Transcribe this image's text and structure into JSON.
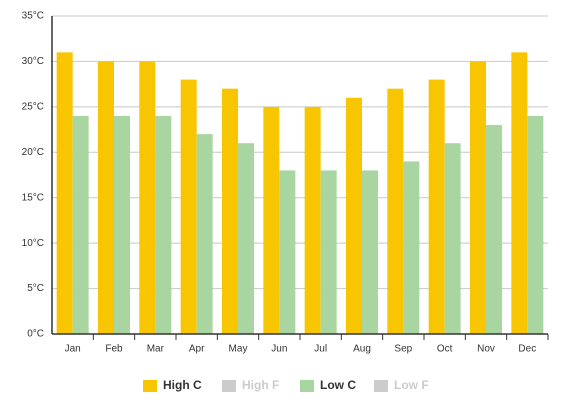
{
  "chart_data": {
    "type": "bar",
    "categories": [
      "Jan",
      "Feb",
      "Mar",
      "Apr",
      "May",
      "Jun",
      "Jul",
      "Aug",
      "Sep",
      "Oct",
      "Nov",
      "Dec"
    ],
    "series": [
      {
        "name": "High C",
        "color": "#f7c600",
        "values": [
          31,
          30,
          30,
          28,
          27,
          25,
          25,
          26,
          27,
          28,
          30,
          31
        ]
      },
      {
        "name": "High F",
        "color": "#cccccc",
        "visible": false
      },
      {
        "name": "Low C",
        "color": "#a9d6a0",
        "values": [
          24,
          24,
          24,
          22,
          21,
          18,
          18,
          18,
          19,
          21,
          23,
          24
        ]
      },
      {
        "name": "Low F",
        "color": "#cccccc",
        "visible": false
      }
    ],
    "ylim": [
      0,
      35
    ],
    "yticks": [
      {
        "value": 0,
        "label": "0°C"
      },
      {
        "value": 5,
        "label": "5°C"
      },
      {
        "value": 10,
        "label": "10°C"
      },
      {
        "value": 15,
        "label": "15°C"
      },
      {
        "value": 20,
        "label": "20°C"
      },
      {
        "value": 25,
        "label": "25°C"
      },
      {
        "value": 30,
        "label": "30°C"
      },
      {
        "value": 35,
        "label": "35°C"
      }
    ],
    "grid": true
  }
}
